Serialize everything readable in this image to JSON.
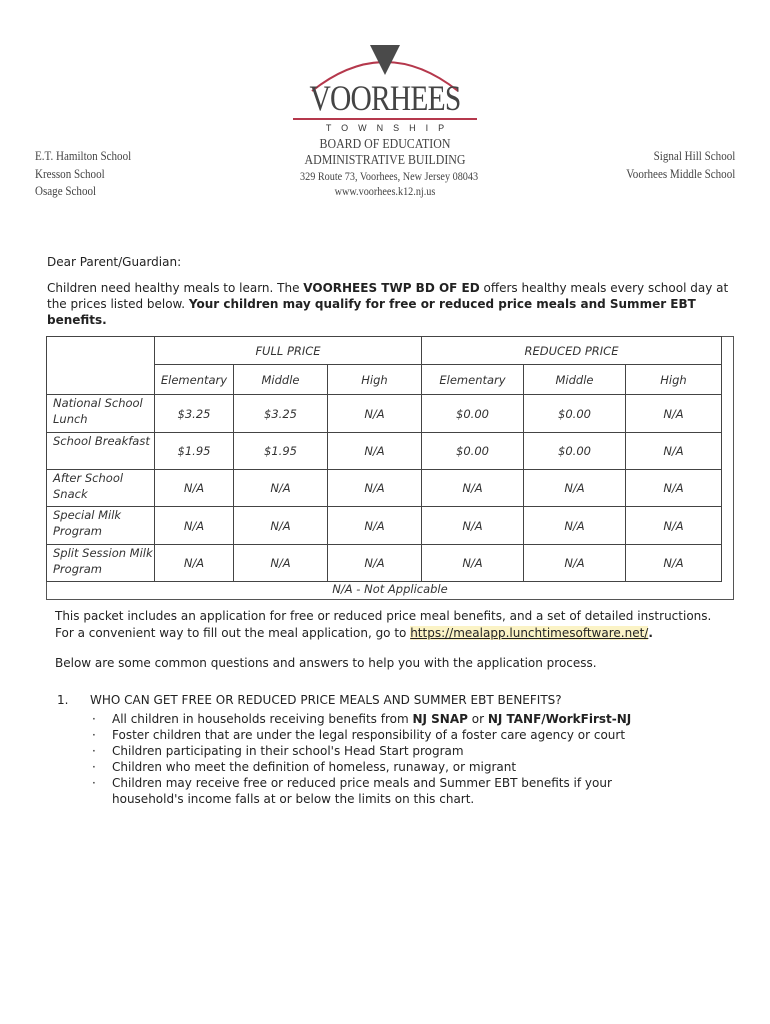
{
  "letterhead": {
    "brand": "VOORHEES",
    "township": "TOWNSHIP",
    "board": "BOARD OF EDUCATION",
    "building": "ADMINISTRATIVE BUILDING",
    "address": "329 Route 73, Voorhees, New Jersey 08043",
    "website": "www.voorhees.k12.nj.us",
    "left_schools": [
      "E.T. Hamilton School",
      "Kresson School",
      "Osage School"
    ],
    "right_schools": [
      "Signal Hill School",
      "Voorhees Middle School"
    ],
    "colors": {
      "arc": "#b5384c",
      "triangle": "#4a4a4a"
    }
  },
  "letter": {
    "greeting": "Dear Parent/Guardian:",
    "intro_1": "Children need healthy meals to learn. The ",
    "intro_bold_1": "VOORHEES TWP BD OF ED",
    "intro_2": " offers healthy meals every school day at the prices listed below. ",
    "intro_bold_2": "Your children may qualify for free or reduced price meals and Summer EBT benefits."
  },
  "price_table": {
    "groups": [
      "FULL PRICE",
      "REDUCED PRICE"
    ],
    "columns": [
      "Elementary",
      "Middle",
      "High",
      "Elementary",
      "Middle",
      "High"
    ],
    "rows": [
      {
        "label": "National School Lunch",
        "values": [
          "$3.25",
          "$3.25",
          "N/A",
          "$0.00",
          "$0.00",
          "N/A"
        ]
      },
      {
        "label": "School Breakfast",
        "values": [
          "$1.95",
          "$1.95",
          "N/A",
          "$0.00",
          "$0.00",
          "N/A"
        ]
      },
      {
        "label": "After School Snack",
        "values": [
          "N/A",
          "N/A",
          "N/A",
          "N/A",
          "N/A",
          "N/A"
        ]
      },
      {
        "label": "Special Milk Program",
        "values": [
          "N/A",
          "N/A",
          "N/A",
          "N/A",
          "N/A",
          "N/A"
        ]
      },
      {
        "label": "Split Session Milk Program",
        "values": [
          "N/A",
          "N/A",
          "N/A",
          "N/A",
          "N/A",
          "N/A"
        ]
      }
    ],
    "footnote": "N/A - Not Applicable"
  },
  "packet": {
    "line1": "This packet includes an application for free or reduced price meal benefits, and a set of detailed instructions.",
    "line2": "For a convenient way to fill out the meal application, go to ",
    "link": "https://mealapp.lunchtimesoftware.net/",
    "link_end": ".",
    "qa_intro": "Below are some common questions and answers to help you with the application process."
  },
  "q1": {
    "number": "1.",
    "title": "WHO CAN GET FREE OR REDUCED PRICE MEALS AND SUMMER EBT BENEFITS?",
    "b1_pre": "All children in households receiving benefits from ",
    "b1_bold1": "NJ SNAP",
    "b1_mid": " or ",
    "b1_bold2": "NJ TANF/WorkFirst-NJ",
    "b2": "Foster children that are under the legal responsibility of a foster care agency or court",
    "b3": "Children participating in their school's Head Start program",
    "b4": "Children who meet the definition of homeless, runaway, or migrant",
    "b5": "Children may receive free or reduced price meals and Summer EBT benefits if your household's income falls at or below the limits on this chart."
  }
}
